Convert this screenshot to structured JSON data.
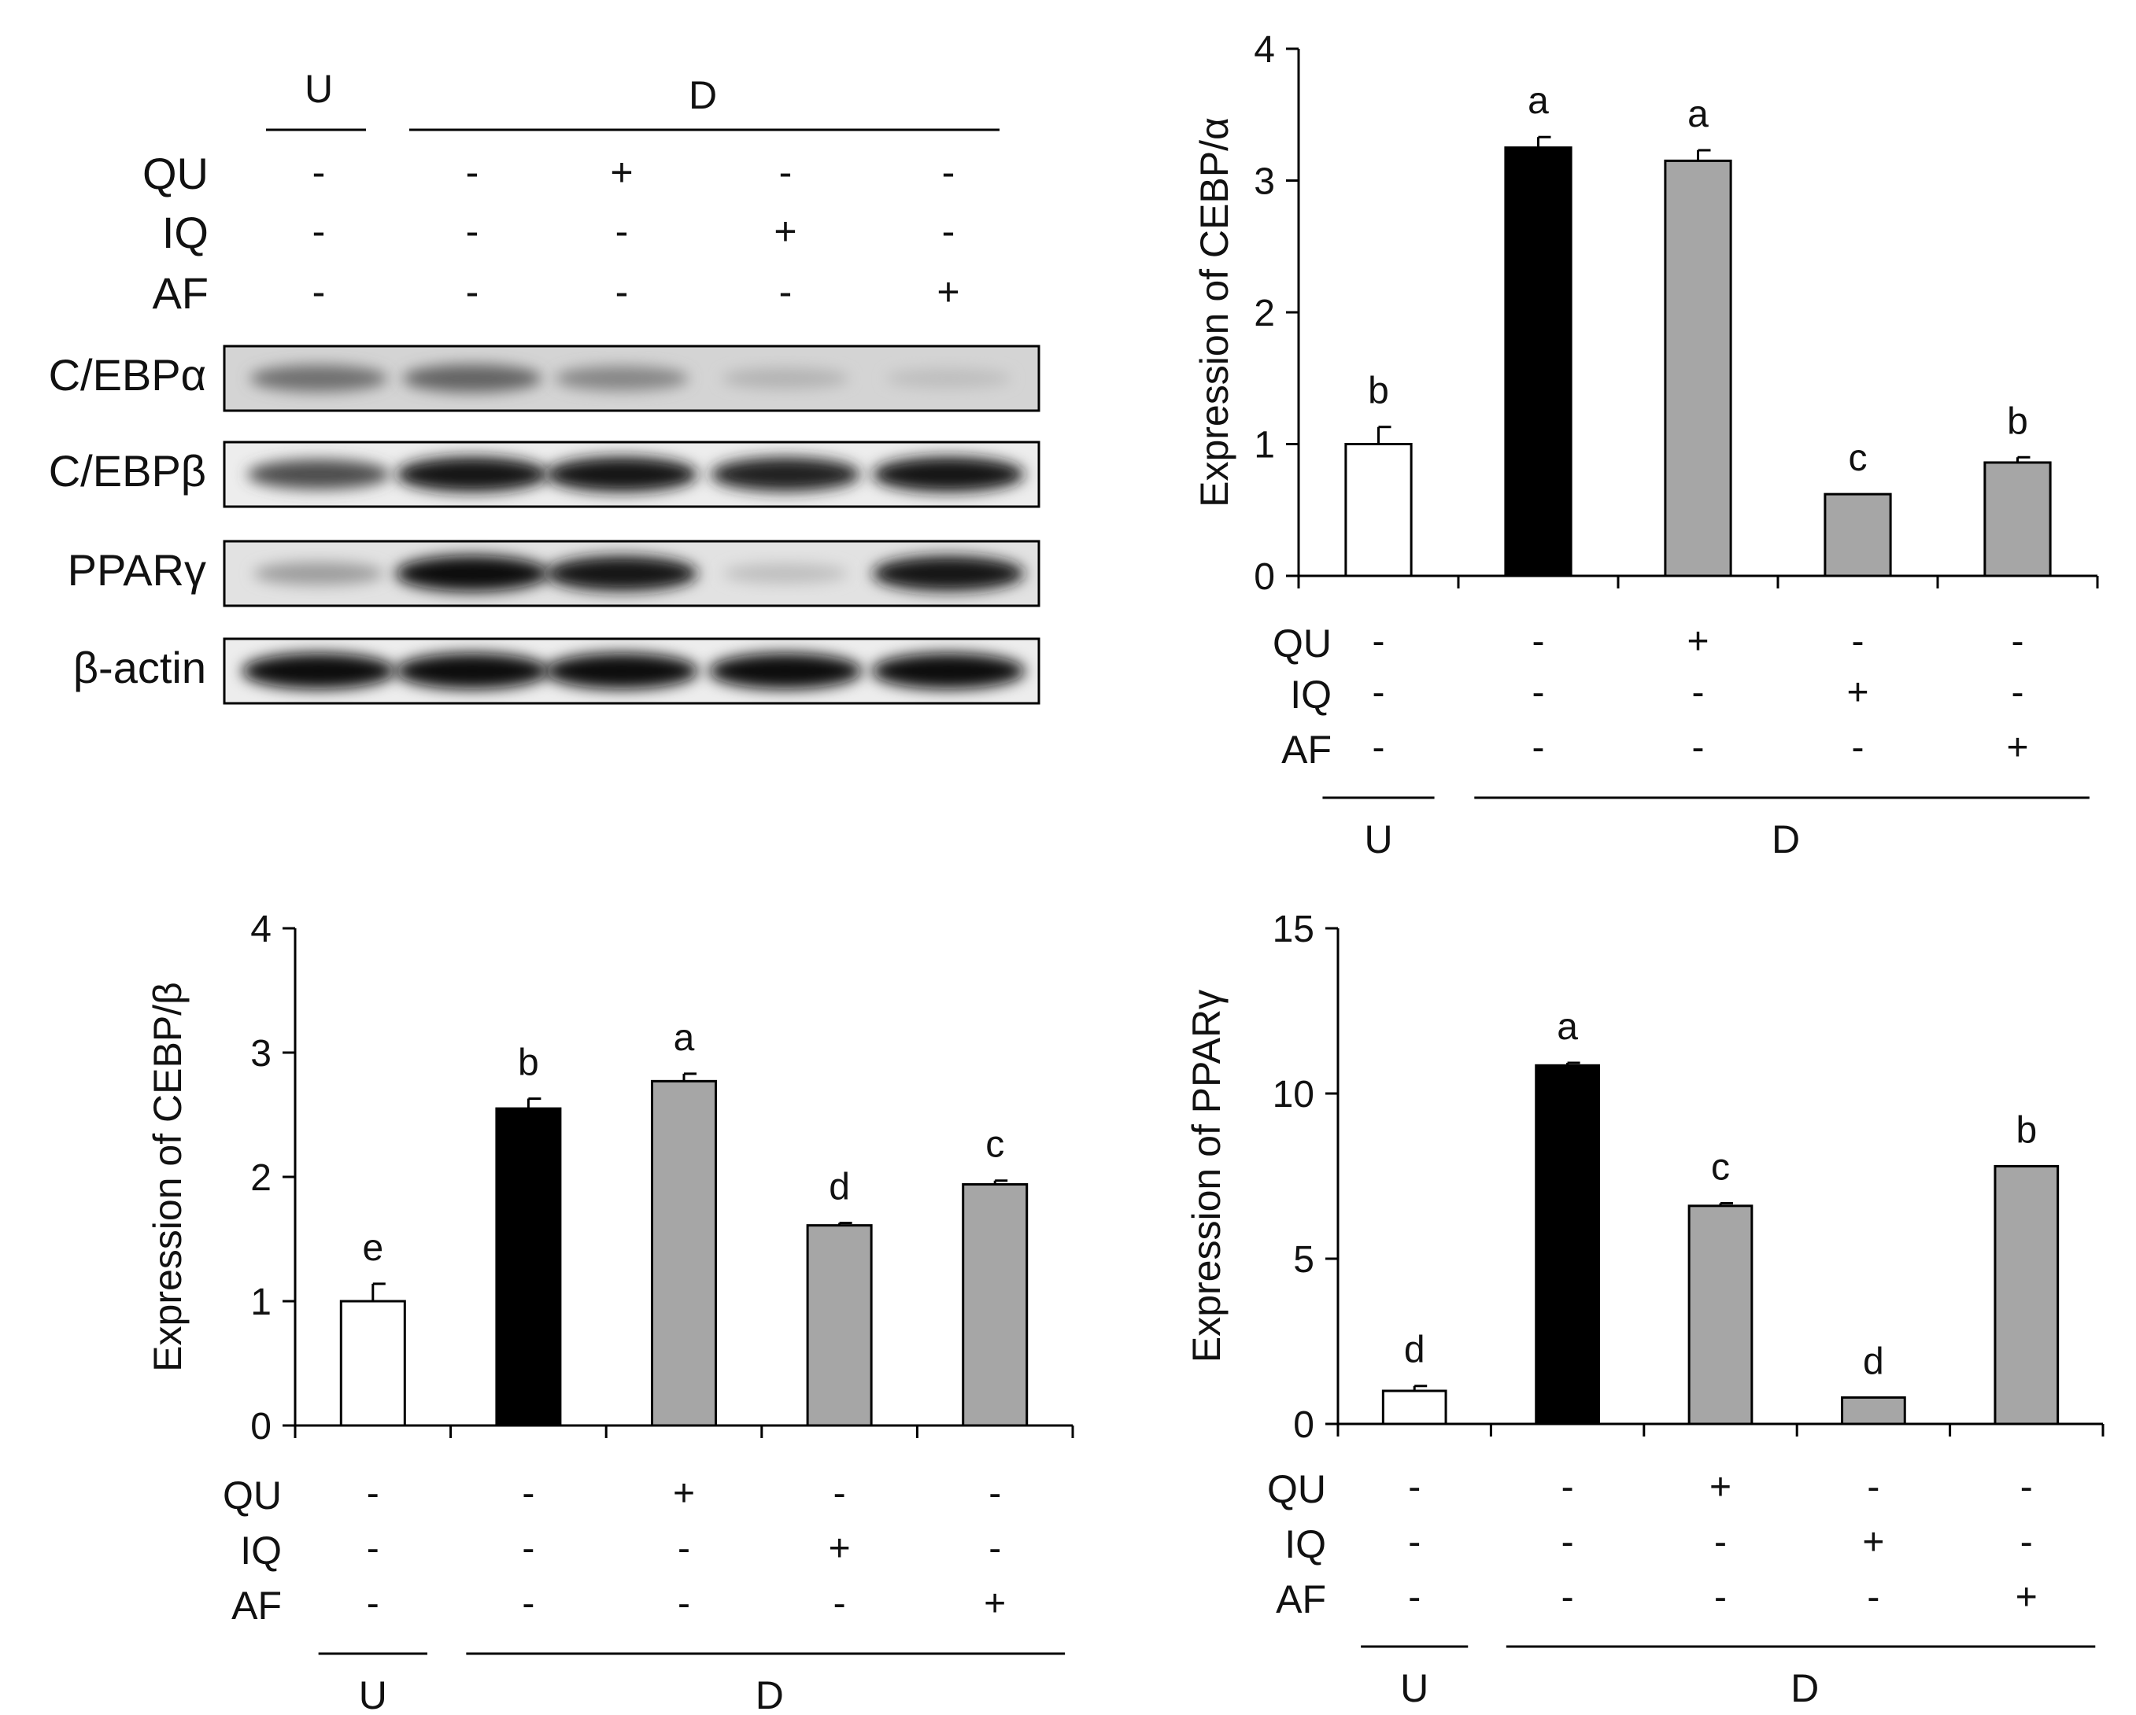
{
  "figure": {
    "conditions": {
      "row_labels": [
        "QU",
        "IQ",
        "AF"
      ],
      "columns": [
        {
          "group": "U",
          "QU": "-",
          "IQ": "-",
          "AF": "-"
        },
        {
          "group": "D",
          "QU": "-",
          "IQ": "-",
          "AF": "-"
        },
        {
          "group": "D",
          "QU": "+",
          "IQ": "-",
          "AF": "-"
        },
        {
          "group": "D",
          "QU": "-",
          "IQ": "+",
          "AF": "-"
        },
        {
          "group": "D",
          "QU": "-",
          "IQ": "-",
          "AF": "+"
        }
      ],
      "group_labels": {
        "U": "U",
        "D": "D"
      }
    },
    "blot": {
      "proteins": [
        "C/EBPα",
        "C/EBPβ",
        "PPARγ",
        "β-actin"
      ],
      "band_intensity": [
        [
          0.55,
          0.6,
          0.45,
          0.25,
          0.2
        ],
        [
          0.7,
          0.95,
          0.95,
          0.9,
          0.95
        ],
        [
          0.35,
          1.0,
          0.95,
          0.2,
          0.95
        ],
        [
          1.0,
          1.0,
          1.0,
          1.0,
          1.0
        ]
      ]
    },
    "colors": {
      "untreated": "#ffffff",
      "differentiated": "#000000",
      "treated": "#a6a6a6",
      "axis": "#000000"
    }
  },
  "chart_data": [
    {
      "type": "bar",
      "title": "",
      "ylabel": "Expression of CEBP/α",
      "ylim": [
        0,
        4
      ],
      "yticks": [
        0,
        1,
        2,
        3,
        4
      ],
      "values": [
        1.0,
        3.25,
        3.15,
        0.62,
        0.86
      ],
      "errors": [
        0.13,
        0.08,
        0.08,
        0.0,
        0.04
      ],
      "letters": [
        "b",
        "a",
        "a",
        "c",
        "b"
      ]
    },
    {
      "type": "bar",
      "title": "",
      "ylabel": "Expression of CEBP/β",
      "ylim": [
        0,
        4
      ],
      "yticks": [
        0,
        1,
        2,
        3,
        4
      ],
      "values": [
        1.0,
        2.55,
        2.77,
        1.61,
        1.94
      ],
      "errors": [
        0.14,
        0.08,
        0.06,
        0.02,
        0.03
      ],
      "letters": [
        "e",
        "b",
        "a",
        "d",
        "c"
      ]
    },
    {
      "type": "bar",
      "title": "",
      "ylabel": "Expression of PPARγ",
      "ylim": [
        0,
        15
      ],
      "yticks": [
        0,
        5,
        10,
        15
      ],
      "values": [
        1.0,
        10.85,
        6.6,
        0.8,
        7.8
      ],
      "errors": [
        0.15,
        0.08,
        0.08,
        0.0,
        0.0
      ],
      "letters": [
        "d",
        "a",
        "c",
        "d",
        "b"
      ]
    }
  ]
}
